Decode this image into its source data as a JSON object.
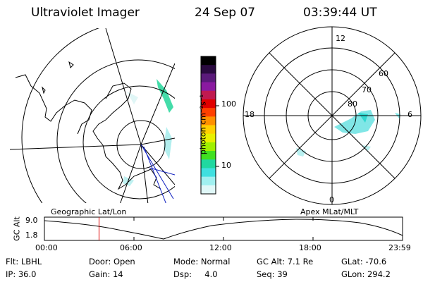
{
  "header": {
    "title": "Ultraviolet Imager",
    "date": "24 Sep 07",
    "time": "03:39:44 UT"
  },
  "colorbar": {
    "label": "photon cm⁻²s⁻¹",
    "ticks": [
      "100",
      "10"
    ],
    "colors": [
      "#000000",
      "#2a0a40",
      "#5a1a7a",
      "#8a1aa0",
      "#c01a50",
      "#e00000",
      "#ff4000",
      "#ff9000",
      "#ffd000",
      "#e8f000",
      "#a0f000",
      "#40e020",
      "#20d8a0",
      "#40e0e0",
      "#a0f0f0",
      "#e0f8f8"
    ]
  },
  "left_map": {
    "label": "Geographic Lat/Lon"
  },
  "right_map": {
    "label": "Apex MLat/MLT",
    "mlt_labels": [
      "12",
      "18",
      "6",
      "0"
    ],
    "lat_labels": [
      "60",
      "70",
      "80"
    ]
  },
  "timeline": {
    "ylabel": "GC Alt",
    "yticks": [
      "9.0",
      "1.8"
    ],
    "xticks": [
      "00:00",
      "06:00",
      "12:00",
      "18:00",
      "23:59"
    ],
    "cursor_hour": 3.66,
    "cursor_color": "#e00000"
  },
  "info": {
    "flt": "Flt: LBHL",
    "ip": "IP: 36.0",
    "door": "Door: Open",
    "gain": "Gain: 14",
    "mode": "Mode: Normal",
    "dsp": "Dsp:     4.0",
    "gcalt": "GC Alt: 7.1 Re",
    "seq": "Seq: 39",
    "glat": "GLat: -70.6",
    "glon": "GLon: 294.2"
  }
}
